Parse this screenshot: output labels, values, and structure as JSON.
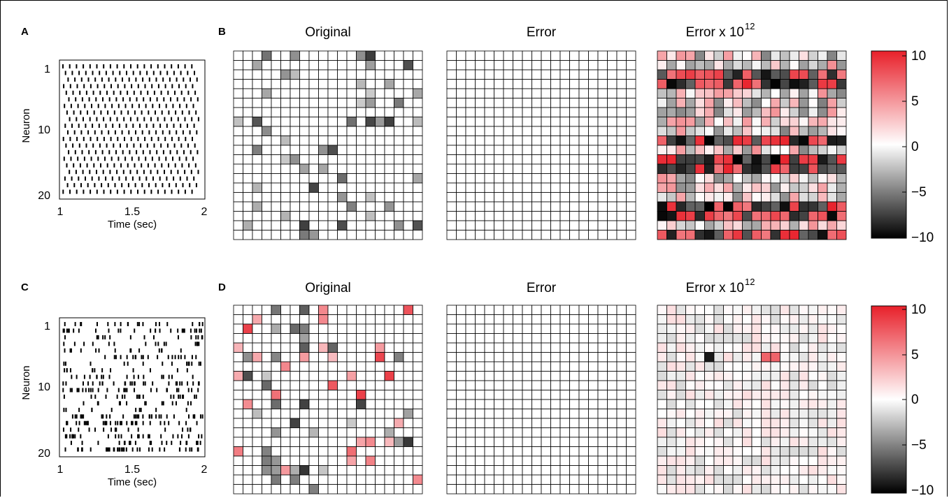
{
  "panel_labels": [
    "A",
    "B",
    "C",
    "D"
  ],
  "top": {
    "raster": {
      "ylabel": "Neuron",
      "xlabel": "Time (sec)",
      "x_ticks": [
        "1",
        "1.5",
        "2"
      ],
      "y_ticks": [
        "1",
        "10",
        "20"
      ]
    },
    "titles": {
      "original": "Original",
      "error": "Error",
      "error_scaled": "Error x 10",
      "error_scaled_exp": "12"
    },
    "colorbar_ticks": [
      "10",
      "5",
      "0",
      "−5",
      "−10"
    ]
  },
  "bottom": {
    "raster": {
      "ylabel": "Neuron",
      "xlabel": "Time (sec)",
      "x_ticks": [
        "1",
        "1.5",
        "2"
      ],
      "y_ticks": [
        "1",
        "10",
        "20"
      ]
    },
    "titles": {
      "original": "Original",
      "error": "Error",
      "error_scaled": "Error x 10",
      "error_scaled_exp": "12"
    },
    "colorbar_ticks": [
      "10",
      "5",
      "0",
      "−5",
      "−10"
    ]
  },
  "colors": {
    "positive": "#e8202a",
    "zero": "#ffffff",
    "negative": "#000000"
  },
  "chart_data": [
    {
      "type": "scatter",
      "panel": "A",
      "xlabel": "Time (sec)",
      "ylabel": "Neuron",
      "xlim": [
        1,
        2
      ],
      "ylim": [
        20,
        1
      ],
      "description_of_marks": "spike raster",
      "spike_rate_hz": [
        20,
        20,
        20,
        20,
        20,
        20,
        20,
        20,
        20,
        20,
        20,
        20,
        20,
        20,
        20,
        20,
        20,
        20,
        20,
        20
      ]
    },
    {
      "type": "heatmap",
      "panel": "B",
      "rows": 20,
      "cols": 20,
      "color_range": [
        -10,
        10
      ],
      "matrices": [
        "Original",
        "Error",
        "Error x 10^12"
      ]
    },
    {
      "type": "scatter",
      "panel": "C",
      "xlabel": "Time (sec)",
      "ylabel": "Neuron",
      "xlim": [
        1,
        2
      ],
      "ylim": [
        20,
        1
      ]
    },
    {
      "type": "heatmap",
      "panel": "D",
      "rows": 20,
      "cols": 20,
      "color_range": [
        -10,
        10
      ],
      "matrices": [
        "Original",
        "Error",
        "Error x 10^12"
      ]
    }
  ]
}
